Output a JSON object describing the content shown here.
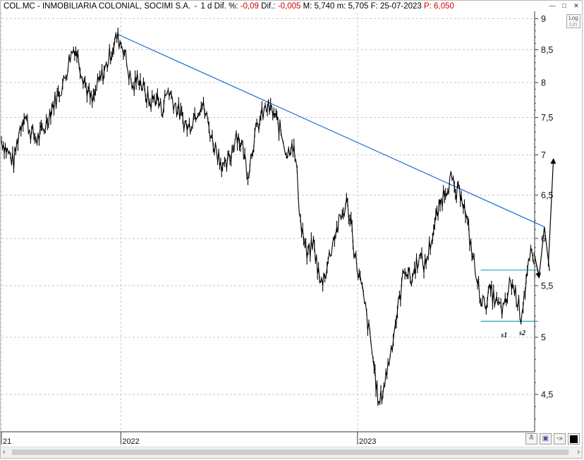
{
  "header": {
    "ticker": "COL.MC - INMOBILIARIA COLONIAL, SOCIMI S.A.",
    "period": "1 d",
    "dif_pct_label": "Dif. %:",
    "dif_pct_value": "-0,09",
    "dif_label": "Dif.:",
    "dif_value": "-0,005",
    "max_label": "M:",
    "max_value": "5,740",
    "min_label": "m:",
    "min_value": "5,705",
    "date_label": "F:",
    "date_value": "25-07-2023",
    "price_label": "P:",
    "price_value": "6,050",
    "colors": {
      "negative": "#d40000",
      "text": "#000000"
    }
  },
  "window_buttons": [
    "minimize-icon",
    "maximize-icon",
    "close-icon"
  ],
  "log_button": {
    "line1": "Log",
    "line2": "Lin"
  },
  "toolbar": {
    "icons": [
      "collapse-icon",
      "save-icon",
      "pin-icon",
      "color-swatch-icon"
    ],
    "pin_glyph": "-»"
  },
  "chart_data": {
    "type": "ohlc-line",
    "title": "",
    "xlabel": "",
    "ylabel": "",
    "ylim": [
      4.2,
      9.1
    ],
    "y_scale": "log",
    "yticks": [
      {
        "value": 9,
        "label": "9"
      },
      {
        "value": 8.5,
        "label": "8,5"
      },
      {
        "value": 8,
        "label": "8"
      },
      {
        "value": 7.5,
        "label": "7,5"
      },
      {
        "value": 7,
        "label": "7"
      },
      {
        "value": 6.5,
        "label": "6,5"
      },
      {
        "value": 6,
        "label": "6"
      },
      {
        "value": 5.5,
        "label": "5,5"
      },
      {
        "value": 5,
        "label": "5"
      },
      {
        "value": 4.5,
        "label": "4,5"
      }
    ],
    "xticks": [
      {
        "date": "2021-07-01",
        "label": "21"
      },
      {
        "date": "2022-01-01",
        "label": "2022"
      },
      {
        "date": "2023-01-01",
        "label": "2023"
      }
    ],
    "xlim": [
      "2021-07-01",
      "2023-10-01"
    ],
    "grid": true,
    "series": [
      {
        "color": "#000000",
        "points": [
          [
            "2021-07-01",
            7.2
          ],
          [
            "2021-07-10",
            7.05
          ],
          [
            "2021-07-20",
            6.9
          ],
          [
            "2021-07-28",
            7.3
          ],
          [
            "2021-08-05",
            7.55
          ],
          [
            "2021-08-15",
            7.3
          ],
          [
            "2021-08-25",
            7.2
          ],
          [
            "2021-09-05",
            7.35
          ],
          [
            "2021-09-15",
            7.6
          ],
          [
            "2021-09-25",
            7.8
          ],
          [
            "2021-10-05",
            8.0
          ],
          [
            "2021-10-15",
            8.4
          ],
          [
            "2021-10-22",
            8.55
          ],
          [
            "2021-11-01",
            8.2
          ],
          [
            "2021-11-10",
            7.9
          ],
          [
            "2021-11-18",
            7.7
          ],
          [
            "2021-11-28",
            8.0
          ],
          [
            "2021-12-08",
            8.2
          ],
          [
            "2021-12-18",
            8.5
          ],
          [
            "2021-12-26",
            8.7
          ],
          [
            "2022-01-05",
            8.55
          ],
          [
            "2022-01-12",
            8.2
          ],
          [
            "2022-01-20",
            7.9
          ],
          [
            "2022-01-28",
            8.1
          ],
          [
            "2022-02-05",
            7.9
          ],
          [
            "2022-02-15",
            7.7
          ],
          [
            "2022-02-25",
            7.8
          ],
          [
            "2022-03-05",
            7.6
          ],
          [
            "2022-03-15",
            7.9
          ],
          [
            "2022-03-25",
            7.7
          ],
          [
            "2022-04-05",
            7.5
          ],
          [
            "2022-04-15",
            7.35
          ],
          [
            "2022-04-25",
            7.55
          ],
          [
            "2022-05-05",
            7.7
          ],
          [
            "2022-05-12",
            7.55
          ],
          [
            "2022-05-22",
            7.2
          ],
          [
            "2022-06-01",
            7.0
          ],
          [
            "2022-06-10",
            6.8
          ],
          [
            "2022-06-20",
            7.0
          ],
          [
            "2022-06-28",
            7.3
          ],
          [
            "2022-07-08",
            7.1
          ],
          [
            "2022-07-16",
            6.75
          ],
          [
            "2022-07-25",
            7.2
          ],
          [
            "2022-08-05",
            7.5
          ],
          [
            "2022-08-15",
            7.65
          ],
          [
            "2022-08-25",
            7.55
          ],
          [
            "2022-09-05",
            7.3
          ],
          [
            "2022-09-15",
            7.0
          ],
          [
            "2022-09-22",
            7.2
          ],
          [
            "2022-09-28",
            6.9
          ],
          [
            "2022-10-05",
            6.2
          ],
          [
            "2022-10-15",
            5.8
          ],
          [
            "2022-10-25",
            5.95
          ],
          [
            "2022-11-05",
            5.5
          ],
          [
            "2022-11-15",
            5.7
          ],
          [
            "2022-11-25",
            6.0
          ],
          [
            "2022-12-05",
            6.2
          ],
          [
            "2022-12-15",
            6.4
          ],
          [
            "2022-12-22",
            6.2
          ],
          [
            "2022-12-28",
            5.8
          ],
          [
            "2023-01-05",
            5.55
          ],
          [
            "2023-01-15",
            5.2
          ],
          [
            "2023-01-25",
            4.8
          ],
          [
            "2023-02-03",
            4.4
          ],
          [
            "2023-02-12",
            4.6
          ],
          [
            "2023-02-22",
            4.9
          ],
          [
            "2023-03-05",
            5.3
          ],
          [
            "2023-03-15",
            5.7
          ],
          [
            "2023-03-25",
            5.55
          ],
          [
            "2023-04-05",
            5.8
          ],
          [
            "2023-04-15",
            5.7
          ],
          [
            "2023-04-25",
            6.0
          ],
          [
            "2023-05-05",
            6.3
          ],
          [
            "2023-05-15",
            6.55
          ],
          [
            "2023-05-25",
            6.7
          ],
          [
            "2023-06-01",
            6.5
          ],
          [
            "2023-06-10",
            6.55
          ],
          [
            "2023-06-18",
            6.2
          ],
          [
            "2023-06-28",
            5.8
          ],
          [
            "2023-07-05",
            5.5
          ],
          [
            "2023-07-15",
            5.3
          ],
          [
            "2023-07-25",
            5.45
          ],
          [
            "2023-08-05",
            5.3
          ],
          [
            "2023-08-15",
            5.25
          ],
          [
            "2023-08-25",
            5.55
          ],
          [
            "2023-09-03",
            5.4
          ],
          [
            "2023-09-10",
            5.2
          ],
          [
            "2023-09-18",
            5.55
          ],
          [
            "2023-09-25",
            5.8
          ],
          [
            "2023-09-30",
            5.72
          ]
        ]
      }
    ],
    "trendlines": [
      {
        "name": "resistance",
        "color": "#1a6fd0",
        "from": [
          "2021-12-26",
          8.75
        ],
        "to": [
          "2023-10-16",
          6.13
        ]
      },
      {
        "name": "neckline",
        "color": "#29a3b8",
        "from": [
          "2023-07-10",
          5.66
        ],
        "to": [
          "2023-10-06",
          5.66
        ]
      },
      {
        "name": "support",
        "color": "#29a3b8",
        "from": [
          "2023-07-10",
          5.15
        ],
        "to": [
          "2023-10-06",
          5.15
        ]
      }
    ],
    "projection": {
      "color": "#000000",
      "path": [
        [
          "2023-09-30",
          5.83
        ],
        [
          "2023-10-08",
          5.6
        ],
        [
          "2023-10-16",
          6.13
        ],
        [
          "2023-10-24",
          5.65
        ]
      ],
      "arrows": [
        {
          "from": [
            "2023-09-30",
            5.85
          ],
          "to": [
            "2023-10-08",
            5.58
          ]
        },
        {
          "from": [
            "2023-10-22",
            5.7
          ],
          "to": [
            "2023-10-30",
            6.95
          ]
        }
      ]
    },
    "annotations": [
      {
        "text": "s1",
        "at": [
          "2023-08-15",
          5.0
        ]
      },
      {
        "text": "s2",
        "at": [
          "2023-09-12",
          5.02
        ]
      }
    ]
  }
}
